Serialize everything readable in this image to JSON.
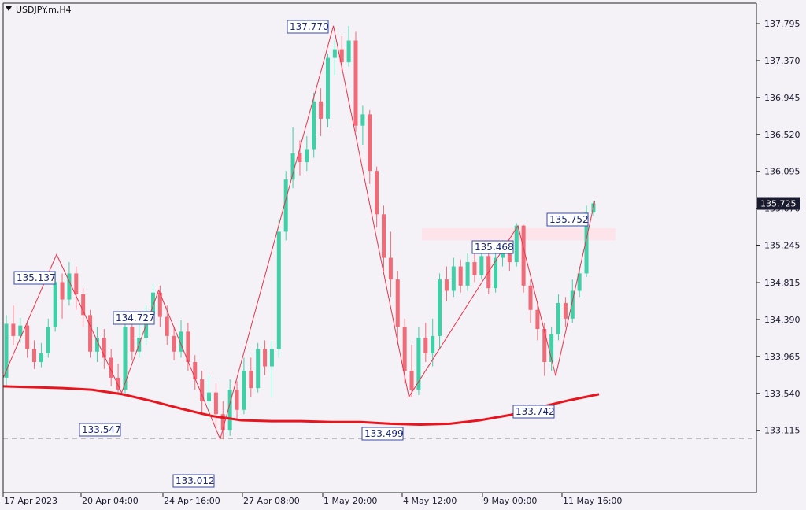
{
  "chart_data": {
    "type": "candlestick",
    "title": "USDJPY.m,H4",
    "ylim": [
      132.85,
      138.1
    ],
    "y_ticks": [
      "137.795",
      "137.370",
      "136.945",
      "136.520",
      "136.095",
      "135.670",
      "135.245",
      "134.815",
      "134.390",
      "133.965",
      "133.540",
      "133.115"
    ],
    "x_ticks": [
      "17 Apr 2023",
      "20 Apr 04:00",
      "24 Apr 16:00",
      "27 Apr 08:00",
      "1 May 20:00",
      "4 May 12:00",
      "9 May 00:00",
      "11 May 16:00"
    ],
    "current_price": "135.725",
    "colors": {
      "up": "#3fd0a8",
      "down": "#f06a78",
      "zigzag": "#e8334a",
      "ma": "#e8141e",
      "zone": "#fde3ea",
      "label_border": "#3a4aa0",
      "price_box": "#1a1a2e"
    },
    "zigzag": [
      {
        "label": "135.137",
        "value": 135.137
      },
      {
        "label": "133.547",
        "value": 133.547
      },
      {
        "label": "134.727",
        "value": 134.727
      },
      {
        "label": "133.012",
        "value": 133.012
      },
      {
        "label": "137.770",
        "value": 137.77
      },
      {
        "label": "133.499",
        "value": 133.499
      },
      {
        "label": "135.468",
        "value": 135.468
      },
      {
        "label": "133.742",
        "value": 133.742
      },
      {
        "label": "135.752",
        "value": 135.752
      }
    ],
    "moving_average": [
      133.62,
      133.61,
      133.6,
      133.58,
      133.53,
      133.45,
      133.36,
      133.28,
      133.23,
      133.22,
      133.22,
      133.21,
      133.21,
      133.19,
      133.18,
      133.19,
      133.23,
      133.29,
      133.38,
      133.46,
      133.53
    ],
    "resistance_zone": [
      135.3,
      135.44
    ],
    "reference_line": 133.02,
    "candles": [
      [
        133.72,
        134.34,
        134.44,
        133.62
      ],
      [
        134.34,
        134.2,
        134.55,
        134.1
      ],
      [
        134.2,
        134.32,
        134.41,
        134.12
      ],
      [
        134.32,
        134.05,
        134.38,
        133.95
      ],
      [
        134.05,
        133.9,
        134.15,
        133.82
      ],
      [
        133.9,
        134.0,
        134.12,
        133.84
      ],
      [
        134.0,
        134.3,
        134.4,
        133.95
      ],
      [
        134.3,
        134.82,
        134.95,
        134.25
      ],
      [
        134.82,
        134.62,
        134.92,
        134.4
      ],
      [
        134.62,
        134.92,
        135.05,
        134.55
      ],
      [
        134.92,
        134.68,
        135.0,
        134.5
      ],
      [
        134.68,
        134.44,
        134.75,
        134.3
      ],
      [
        134.44,
        134.02,
        134.5,
        133.95
      ],
      [
        134.02,
        134.18,
        134.3,
        133.9
      ],
      [
        134.18,
        133.95,
        134.28,
        133.82
      ],
      [
        133.95,
        133.72,
        134.05,
        133.62
      ],
      [
        133.72,
        133.58,
        133.88,
        133.54
      ],
      [
        133.58,
        134.3,
        134.4,
        133.52
      ],
      [
        134.3,
        134.02,
        134.42,
        133.92
      ],
      [
        134.02,
        134.18,
        134.35,
        133.95
      ],
      [
        134.18,
        134.45,
        134.55,
        134.1
      ],
      [
        134.45,
        134.7,
        134.8,
        134.35
      ],
      [
        134.7,
        134.42,
        134.78,
        134.3
      ],
      [
        134.42,
        134.2,
        134.55,
        134.1
      ],
      [
        134.2,
        134.02,
        134.3,
        133.92
      ],
      [
        134.02,
        134.25,
        134.38,
        133.95
      ],
      [
        134.25,
        133.9,
        134.35,
        133.8
      ],
      [
        133.9,
        133.7,
        133.98,
        133.58
      ],
      [
        133.7,
        133.45,
        133.8,
        133.3
      ],
      [
        133.45,
        133.55,
        133.75,
        133.25
      ],
      [
        133.55,
        133.3,
        133.65,
        133.15
      ],
      [
        133.3,
        133.12,
        133.45,
        133.01
      ],
      [
        133.12,
        133.58,
        133.7,
        133.05
      ],
      [
        133.58,
        133.35,
        133.68,
        133.25
      ],
      [
        133.35,
        133.8,
        133.95,
        133.3
      ],
      [
        133.8,
        133.6,
        133.95,
        133.5
      ],
      [
        133.6,
        134.05,
        134.12,
        133.55
      ],
      [
        134.05,
        133.85,
        134.15,
        133.75
      ],
      [
        133.85,
        134.05,
        134.15,
        133.5
      ],
      [
        134.05,
        135.4,
        135.55,
        133.95
      ],
      [
        135.4,
        136.0,
        136.1,
        135.3
      ],
      [
        136.0,
        136.3,
        136.6,
        135.9
      ],
      [
        136.3,
        136.2,
        136.45,
        136.05
      ],
      [
        136.2,
        136.35,
        136.5,
        136.1
      ],
      [
        136.35,
        136.9,
        137.0,
        136.25
      ],
      [
        136.9,
        136.7,
        137.05,
        136.5
      ],
      [
        136.7,
        137.4,
        137.45,
        136.6
      ],
      [
        137.4,
        137.5,
        137.6,
        137.2
      ],
      [
        137.5,
        137.35,
        137.65,
        137.25
      ],
      [
        137.35,
        137.6,
        137.77,
        137.3
      ],
      [
        137.6,
        136.62,
        137.7,
        136.55
      ],
      [
        136.62,
        136.75,
        136.85,
        136.4
      ],
      [
        136.75,
        136.1,
        136.8,
        135.95
      ],
      [
        136.1,
        135.6,
        136.15,
        135.45
      ],
      [
        135.6,
        135.1,
        135.7,
        134.95
      ],
      [
        135.1,
        134.85,
        135.4,
        134.65
      ],
      [
        134.85,
        134.3,
        134.95,
        134.1
      ],
      [
        134.3,
        133.8,
        134.4,
        133.65
      ],
      [
        133.8,
        133.58,
        134.1,
        133.5
      ],
      [
        133.58,
        134.18,
        134.3,
        133.52
      ],
      [
        134.18,
        134.0,
        134.35,
        133.9
      ],
      [
        134.0,
        134.2,
        134.4,
        133.85
      ],
      [
        134.2,
        134.85,
        134.92,
        134.05
      ],
      [
        134.85,
        134.72,
        135.0,
        134.6
      ],
      [
        134.72,
        135.0,
        135.1,
        134.65
      ],
      [
        135.0,
        134.78,
        135.08,
        134.7
      ],
      [
        134.78,
        135.05,
        135.15,
        134.72
      ],
      [
        135.05,
        134.9,
        135.2,
        134.82
      ],
      [
        134.9,
        135.12,
        135.25,
        134.85
      ],
      [
        135.12,
        134.75,
        135.2,
        134.68
      ],
      [
        134.75,
        135.1,
        135.25,
        134.7
      ],
      [
        135.1,
        135.2,
        135.3,
        135.0
      ],
      [
        135.2,
        135.05,
        135.28,
        134.95
      ],
      [
        135.05,
        135.47,
        135.5,
        135.0
      ],
      [
        135.47,
        134.78,
        135.48,
        134.7
      ],
      [
        134.78,
        134.5,
        134.85,
        134.35
      ],
      [
        134.5,
        134.28,
        134.6,
        134.15
      ],
      [
        134.28,
        133.9,
        134.35,
        133.74
      ],
      [
        133.9,
        134.22,
        134.3,
        133.8
      ],
      [
        134.22,
        134.58,
        134.68,
        134.15
      ],
      [
        134.58,
        134.4,
        134.65,
        134.3
      ],
      [
        134.4,
        134.72,
        134.85,
        134.35
      ],
      [
        134.72,
        134.92,
        135.0,
        134.65
      ],
      [
        134.92,
        135.62,
        135.7,
        134.88
      ],
      [
        135.62,
        135.725,
        135.76,
        135.58
      ]
    ]
  }
}
